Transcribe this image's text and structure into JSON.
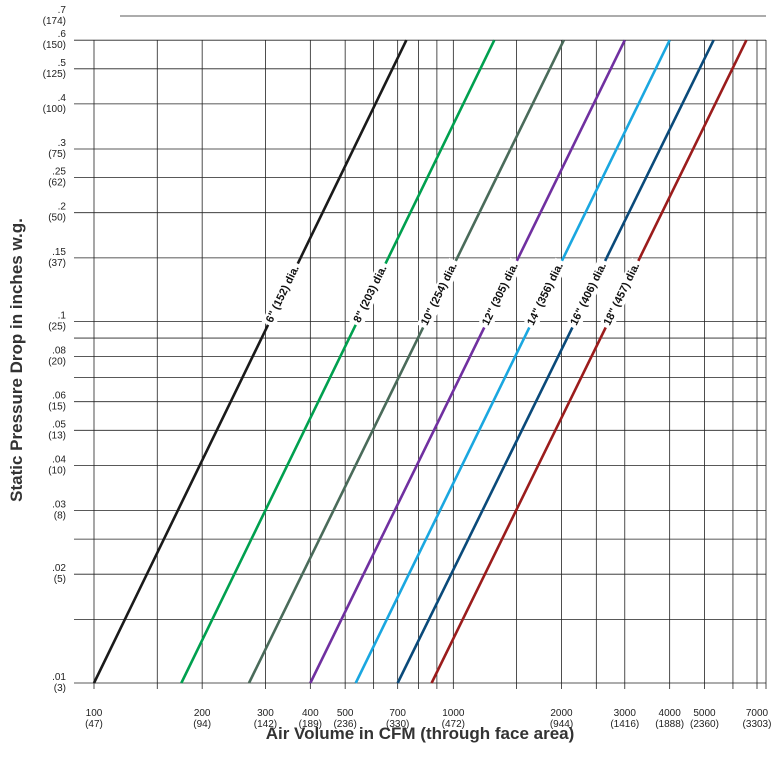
{
  "chart_data": {
    "type": "line",
    "title": "",
    "xlabel": "Air Volume in CFM (through face area)",
    "ylabel": "Static Pressure Drop in inches w.g.",
    "x_scale": "log",
    "y_scale": "log",
    "xlim": [
      100,
      7000
    ],
    "ylim": [
      0.01,
      0.7
    ],
    "grid": true,
    "x_ticks": [
      {
        "value": 100,
        "label": "100",
        "sub": "(47)"
      },
      {
        "value": 200,
        "label": "200",
        "sub": "(94)"
      },
      {
        "value": 300,
        "label": "300",
        "sub": "(142)"
      },
      {
        "value": 400,
        "label": "400",
        "sub": "(189)"
      },
      {
        "value": 500,
        "label": "500",
        "sub": "(236)"
      },
      {
        "value": 700,
        "label": "700",
        "sub": "(330)"
      },
      {
        "value": 1000,
        "label": "1000",
        "sub": "(472)"
      },
      {
        "value": 2000,
        "label": "2000",
        "sub": "(944)"
      },
      {
        "value": 3000,
        "label": "3000",
        "sub": "(1416)"
      },
      {
        "value": 4000,
        "label": "4000",
        "sub": "(1888)"
      },
      {
        "value": 5000,
        "label": "5000",
        "sub": "(2360)"
      },
      {
        "value": 7000,
        "label": "7000",
        "sub": "(3303)"
      }
    ],
    "x_minor_grid": [
      150,
      600,
      800,
      900,
      1500,
      2500,
      6000
    ],
    "y_ticks": [
      {
        "value": 0.01,
        "label": ".01",
        "sub": "(3)"
      },
      {
        "value": 0.02,
        "label": ".02",
        "sub": "(5)"
      },
      {
        "value": 0.03,
        "label": ".03",
        "sub": "(8)"
      },
      {
        "value": 0.04,
        "label": ".04",
        "sub": "(10)"
      },
      {
        "value": 0.05,
        "label": ".05",
        "sub": "(13)"
      },
      {
        "value": 0.06,
        "label": ".06",
        "sub": "(15)"
      },
      {
        "value": 0.08,
        "label": ".08",
        "sub": "(20)"
      },
      {
        "value": 0.1,
        "label": ".1",
        "sub": "(25)"
      },
      {
        "value": 0.15,
        "label": ".15",
        "sub": "(37)"
      },
      {
        "value": 0.2,
        "label": ".2",
        "sub": "(50)"
      },
      {
        "value": 0.25,
        "label": ".25",
        "sub": "(62)"
      },
      {
        "value": 0.3,
        "label": ".3",
        "sub": "(75)"
      },
      {
        "value": 0.4,
        "label": ".4",
        "sub": "(100)"
      },
      {
        "value": 0.5,
        "label": ".5",
        "sub": "(125)"
      },
      {
        "value": 0.6,
        "label": ".6",
        "sub": "(150)"
      },
      {
        "value": 0.7,
        "label": ".7",
        "sub": "(174)"
      }
    ],
    "y_minor_grid": [
      0.015,
      0.025,
      0.07,
      0.09
    ],
    "series": [
      {
        "name": "6\" (152) dia.",
        "color": "#1a1a1a",
        "x": [
          100,
          740
        ],
        "y": [
          0.01,
          0.6
        ],
        "label_at": 0.119
      },
      {
        "name": "8\" (203) dia.",
        "color": "#00a04f",
        "x": [
          175,
          1300
        ],
        "y": [
          0.01,
          0.6
        ],
        "label_at": 0.119
      },
      {
        "name": "10\" (254) dia.",
        "color": "#4a6b5a",
        "x": [
          270,
          2030
        ],
        "y": [
          0.01,
          0.6
        ],
        "label_at": 0.119
      },
      {
        "name": "12\" (305) dia.",
        "color": "#7030a0",
        "x": [
          400,
          3000
        ],
        "y": [
          0.01,
          0.6
        ],
        "label_at": 0.119
      },
      {
        "name": "14\" (356) dia.",
        "color": "#1aa7e0",
        "x": [
          535,
          4000
        ],
        "y": [
          0.01,
          0.6
        ],
        "label_at": 0.119
      },
      {
        "name": "16\" (406) dia.",
        "color": "#0a4a7a",
        "x": [
          700,
          5300
        ],
        "y": [
          0.01,
          0.6
        ],
        "label_at": 0.119
      },
      {
        "name": "18\" (457) dia.",
        "color": "#9b1c1c",
        "x": [
          870,
          6540
        ],
        "y": [
          0.01,
          0.6
        ],
        "label_at": 0.119
      }
    ]
  }
}
